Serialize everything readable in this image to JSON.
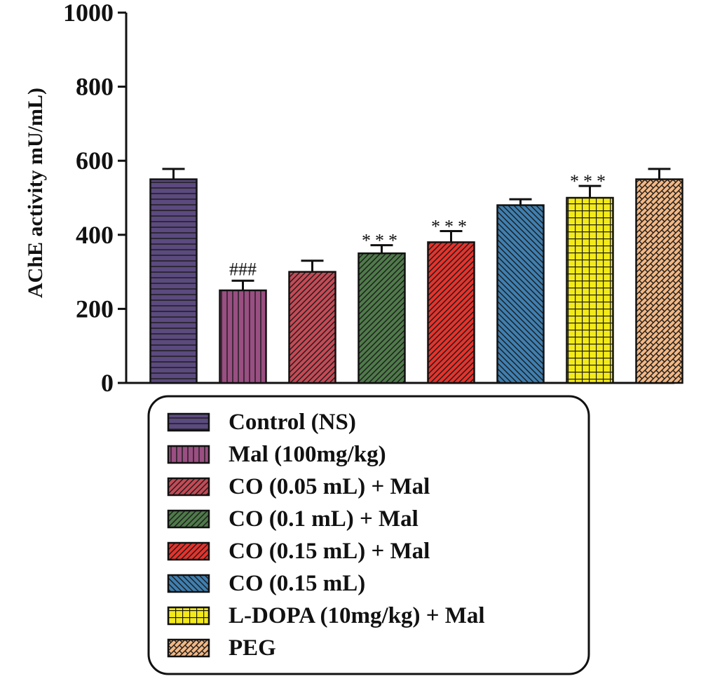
{
  "chart_data": {
    "type": "bar",
    "title": "",
    "xlabel": "",
    "ylabel": "AChE activity mU/mL)",
    "ylim": [
      0,
      1000
    ],
    "yticks": [
      0,
      200,
      400,
      600,
      800,
      1000
    ],
    "grid": false,
    "legend_position": "bottom",
    "series": [
      {
        "name": "Control (NS)",
        "value": 550,
        "error": 28,
        "significance": "",
        "color": "#5b4a7e",
        "pattern": "horizontal-lines"
      },
      {
        "name": "Mal (100mg/kg)",
        "value": 250,
        "error": 26,
        "significance": "###",
        "color": "#9a4f82",
        "pattern": "vertical-lines"
      },
      {
        "name": "CO (0.05 mL) + Mal",
        "value": 300,
        "error": 30,
        "significance": "",
        "color": "#c44a55",
        "pattern": "diagonal-lines"
      },
      {
        "name": "CO (0.1 mL) + Mal",
        "value": 350,
        "error": 22,
        "significance": "***",
        "color": "#4f7a4a",
        "pattern": "diagonal-lines"
      },
      {
        "name": "CO (0.15 mL) + Mal",
        "value": 380,
        "error": 30,
        "significance": "***",
        "color": "#e4332c",
        "pattern": "diagonal-lines"
      },
      {
        "name": "CO (0.15 mL)",
        "value": 480,
        "error": 16,
        "significance": "",
        "color": "#3f7fb0",
        "pattern": "back-diagonal-lines"
      },
      {
        "name": "L-DOPA (10mg/kg) + Mal",
        "value": 500,
        "error": 32,
        "significance": "***",
        "color": "#f3ea1a",
        "pattern": "grid"
      },
      {
        "name": "PEG",
        "value": 550,
        "error": 28,
        "significance": "",
        "color": "#f2b784",
        "pattern": "crosshatch"
      }
    ]
  }
}
